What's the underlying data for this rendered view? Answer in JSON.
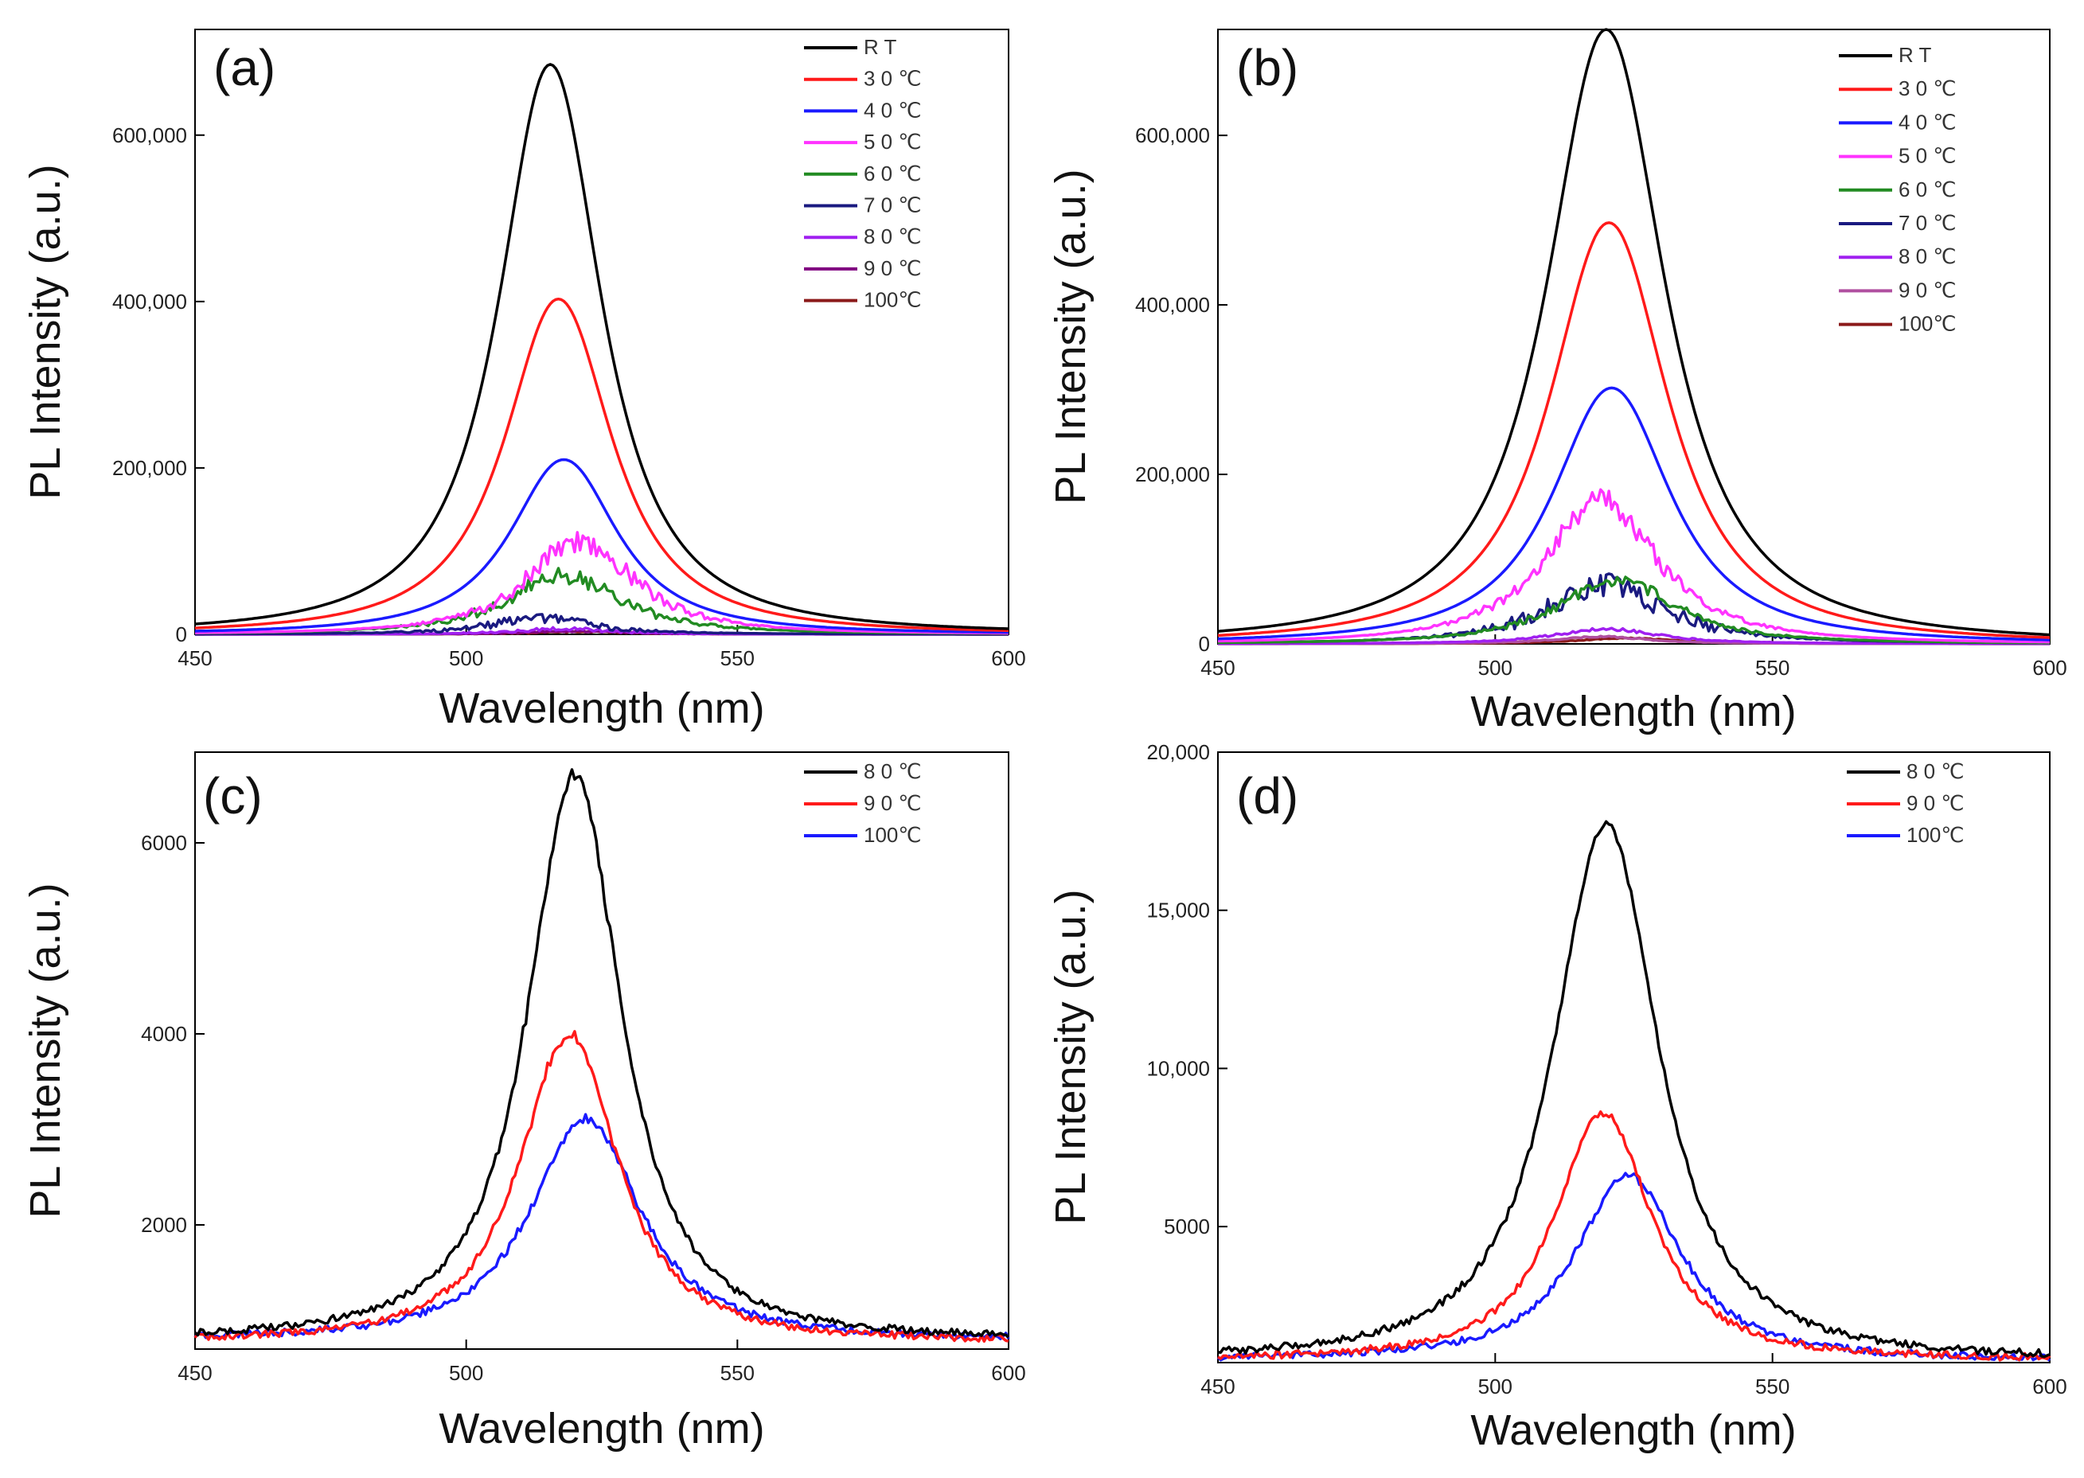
{
  "chart_data": [
    {
      "type": "line",
      "panel_label": "(a)",
      "xlabel": "Wavelength (nm)",
      "ylabel": "PL Intensity (a.u.)",
      "xlim": [
        450,
        600
      ],
      "ylim": [
        0,
        727000
      ],
      "xticks": [
        450,
        500,
        550,
        600
      ],
      "xtick_labels": [
        "450",
        "500",
        "550",
        "600"
      ],
      "yticks": [
        0,
        200000,
        400000,
        600000
      ],
      "ytick_labels": [
        "0",
        "200,000",
        "400,000",
        "600,000"
      ],
      "legend_position": "top-right",
      "series": [
        {
          "name": "R T",
          "color": "#000000",
          "peak_x": 515.5,
          "peak_y": 685000,
          "fwhm": 24,
          "baseline": 0,
          "noise": 0
        },
        {
          "name": "3 0 ℃",
          "color": "#ff1a1a",
          "peak_x": 517,
          "peak_y": 403000,
          "fwhm": 25,
          "baseline": 0,
          "noise": 0
        },
        {
          "name": "4 0 ℃",
          "color": "#1a1aff",
          "peak_x": 518,
          "peak_y": 210000,
          "fwhm": 25,
          "baseline": 0,
          "noise": 0
        },
        {
          "name": "5 0 ℃",
          "color": "#ff33ff",
          "peak_x": 521,
          "peak_y": 113000,
          "fwhm": 25,
          "baseline": 0,
          "noise": 0.12
        },
        {
          "name": "6 0 ℃",
          "color": "#228b22",
          "peak_x": 518,
          "peak_y": 70000,
          "fwhm": 27,
          "baseline": 0,
          "noise": 0.15
        },
        {
          "name": "7 0 ℃",
          "color": "#1a1a80",
          "peak_x": 514,
          "peak_y": 20000,
          "fwhm": 24,
          "baseline": 0,
          "noise": 0.3
        },
        {
          "name": "8 0 ℃",
          "color": "#a020f0",
          "peak_x": 518,
          "peak_y": 6700,
          "fwhm": 22,
          "baseline": 0,
          "noise": 0.3
        },
        {
          "name": "9 0 ℃",
          "color": "#800080",
          "peak_x": 519,
          "peak_y": 4000,
          "fwhm": 22,
          "baseline": 0,
          "noise": 0.3
        },
        {
          "name": "100℃",
          "color": "#8b1a1a",
          "peak_x": 522,
          "peak_y": 3100,
          "fwhm": 24,
          "baseline": 0,
          "noise": 0.3
        }
      ]
    },
    {
      "type": "line",
      "panel_label": "(b)",
      "xlabel": "Wavelength (nm)",
      "ylabel": "PL Intensity (a.u.)",
      "xlim": [
        450,
        600
      ],
      "ylim": [
        0,
        725000
      ],
      "xticks": [
        450,
        500,
        550,
        600
      ],
      "xtick_labels": [
        "450",
        "500",
        "550",
        "600"
      ],
      "yticks": [
        0,
        200000,
        400000,
        600000
      ],
      "ytick_labels": [
        "0",
        "200,000",
        "400,000",
        "600,000"
      ],
      "legend_position": "top-right",
      "series": [
        {
          "name": "R T",
          "color": "#000000",
          "peak_x": 520,
          "peak_y": 725000,
          "fwhm": 27,
          "baseline": 0,
          "noise": 0
        },
        {
          "name": "3 0 ℃",
          "color": "#ff1a1a",
          "peak_x": 520.5,
          "peak_y": 497000,
          "fwhm": 27,
          "baseline": 0,
          "noise": 0
        },
        {
          "name": "4 0 ℃",
          "color": "#1a1aff",
          "peak_x": 521,
          "peak_y": 302000,
          "fwhm": 27,
          "baseline": 0,
          "noise": 0
        },
        {
          "name": "5 0 ℃",
          "color": "#ff33ff",
          "peak_x": 519,
          "peak_y": 170000,
          "fwhm": 26,
          "baseline": 0,
          "noise": 0.08
        },
        {
          "name": "6 0 ℃",
          "color": "#228b22",
          "peak_x": 522,
          "peak_y": 75000,
          "fwhm": 27,
          "baseline": 0,
          "noise": 0.1
        },
        {
          "name": "7 0 ℃",
          "color": "#1a1a80",
          "peak_x": 520,
          "peak_y": 70000,
          "fwhm": 27,
          "baseline": 0,
          "noise": 0.2
        },
        {
          "name": "8 0 ℃",
          "color": "#a020f0",
          "peak_x": 520,
          "peak_y": 17700,
          "fwhm": 24,
          "baseline": 0,
          "noise": 0.1
        },
        {
          "name": "9 0 ℃",
          "color": "#b04fa0",
          "peak_x": 519,
          "peak_y": 8600,
          "fwhm": 22,
          "baseline": 0,
          "noise": 0.1
        },
        {
          "name": "100℃",
          "color": "#8b1a1a",
          "peak_x": 524,
          "peak_y": 6600,
          "fwhm": 24,
          "baseline": 0,
          "noise": 0.1
        }
      ]
    },
    {
      "type": "line",
      "panel_label": "(c)",
      "xlabel": "Wavelength (nm)",
      "ylabel": "PL Intensity (a.u.)",
      "xlim": [
        450,
        600
      ],
      "ylim": [
        700,
        6950
      ],
      "xticks": [
        450,
        500,
        550,
        600
      ],
      "xtick_labels": [
        "450",
        "500",
        "550",
        "600"
      ],
      "yticks": [
        2000,
        4000,
        6000
      ],
      "ytick_labels": [
        "2000",
        "4000",
        "6000"
      ],
      "legend_position": "top-right",
      "series": [
        {
          "name": "8 0 ℃",
          "color": "#000000",
          "peak_x": 520,
          "peak_y": 6700,
          "fwhm": 22,
          "baseline": 800,
          "noise": 0.01
        },
        {
          "name": "9 0 ℃",
          "color": "#ff1a1a",
          "peak_x": 519,
          "peak_y": 4000,
          "fwhm": 23,
          "baseline": 780,
          "noise": 0.01
        },
        {
          "name": "100℃",
          "color": "#1a1aff",
          "peak_x": 522,
          "peak_y": 3100,
          "fwhm": 26,
          "baseline": 800,
          "noise": 0.01
        }
      ]
    },
    {
      "type": "line",
      "panel_label": "(d)",
      "xlabel": "Wavelength (nm)",
      "ylabel": "PL Intensity (a.u.)",
      "xlim": [
        450,
        600
      ],
      "ylim": [
        700,
        20000
      ],
      "xticks": [
        450,
        500,
        550,
        600
      ],
      "xtick_labels": [
        "450",
        "500",
        "550",
        "600"
      ],
      "yticks": [
        5000,
        10000,
        15000,
        20000
      ],
      "ytick_labels": [
        "5000",
        "10,000",
        "15,000",
        "20,000"
      ],
      "legend_position": "top-right",
      "series": [
        {
          "name": "8 0 ℃",
          "color": "#000000",
          "peak_x": 520,
          "peak_y": 17700,
          "fwhm": 24,
          "baseline": 800,
          "noise": 0
        },
        {
          "name": "9 0 ℃",
          "color": "#ff1a1a",
          "peak_x": 519.5,
          "peak_y": 8600,
          "fwhm": 22,
          "baseline": 800,
          "noise": 0
        },
        {
          "name": "100℃",
          "color": "#1a1aff",
          "peak_x": 524,
          "peak_y": 6600,
          "fwhm": 24,
          "baseline": 800,
          "noise": 0
        }
      ]
    }
  ]
}
